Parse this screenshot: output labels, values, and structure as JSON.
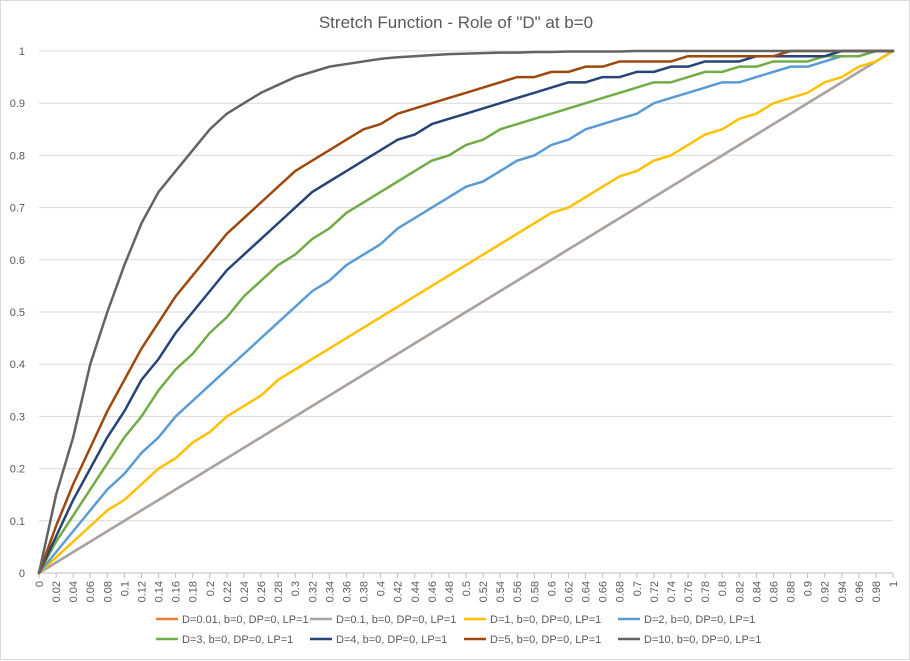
{
  "chart_data": {
    "type": "line",
    "title": "Stretch Function - Role of \"D\" at b=0",
    "xlabel": "",
    "ylabel": "",
    "xlim": [
      0,
      1
    ],
    "ylim": [
      0,
      1
    ],
    "grid": "horizontal",
    "legend_position": "bottom",
    "x_ticks": [
      "0",
      "0.02",
      "0.04",
      "0.06",
      "0.08",
      "0.1",
      "0.12",
      "0.14",
      "0.16",
      "0.18",
      "0.2",
      "0.22",
      "0.24",
      "0.26",
      "0.28",
      "0.3",
      "0.32",
      "0.34",
      "0.36",
      "0.38",
      "0.4",
      "0.42",
      "0.44",
      "0.46",
      "0.48",
      "0.5",
      "0.52",
      "0.54",
      "0.56",
      "0.58",
      "0.6",
      "0.62",
      "0.64",
      "0.66",
      "0.68",
      "0.7",
      "0.72",
      "0.74",
      "0.76",
      "0.78",
      "0.8",
      "0.82",
      "0.84",
      "0.86",
      "0.88",
      "0.9",
      "0.92",
      "0.94",
      "0.96",
      "0.98",
      "1"
    ],
    "y_ticks": [
      "0",
      "0.1",
      "0.2",
      "0.3",
      "0.4",
      "0.5",
      "0.6",
      "0.7",
      "0.8",
      "0.9",
      "1"
    ],
    "x": [
      0,
      0.02,
      0.04,
      0.06,
      0.08,
      0.1,
      0.12,
      0.14,
      0.16,
      0.18,
      0.2,
      0.22,
      0.24,
      0.26,
      0.28,
      0.3,
      0.32,
      0.34,
      0.36,
      0.38,
      0.4,
      0.42,
      0.44,
      0.46,
      0.48,
      0.5,
      0.52,
      0.54,
      0.56,
      0.58,
      0.6,
      0.62,
      0.64,
      0.66,
      0.68,
      0.7,
      0.72,
      0.74,
      0.76,
      0.78,
      0.8,
      0.82,
      0.84,
      0.86,
      0.88,
      0.9,
      0.92,
      0.94,
      0.96,
      0.98,
      1
    ],
    "series": [
      {
        "name": "D=0.01, b=0, DP=0, LP=1",
        "color": "#ED7D31",
        "values": [
          0,
          0.02,
          0.04,
          0.06,
          0.08,
          0.1,
          0.12,
          0.14,
          0.16,
          0.18,
          0.2,
          0.22,
          0.24,
          0.26,
          0.28,
          0.3,
          0.32,
          0.34,
          0.36,
          0.38,
          0.4,
          0.42,
          0.44,
          0.46,
          0.48,
          0.5,
          0.52,
          0.54,
          0.56,
          0.58,
          0.6,
          0.62,
          0.64,
          0.66,
          0.68,
          0.7,
          0.72,
          0.74,
          0.76,
          0.78,
          0.8,
          0.82,
          0.84,
          0.86,
          0.88,
          0.9,
          0.92,
          0.94,
          0.96,
          0.98,
          1
        ]
      },
      {
        "name": "D=0.1, b=0, DP=0, LP=1",
        "color": "#A5A5A5",
        "values": [
          0,
          0.02,
          0.04,
          0.06,
          0.08,
          0.1,
          0.12,
          0.14,
          0.16,
          0.18,
          0.2,
          0.22,
          0.24,
          0.26,
          0.28,
          0.3,
          0.32,
          0.34,
          0.36,
          0.38,
          0.4,
          0.42,
          0.44,
          0.46,
          0.48,
          0.5,
          0.52,
          0.54,
          0.56,
          0.58,
          0.6,
          0.62,
          0.64,
          0.66,
          0.68,
          0.7,
          0.72,
          0.74,
          0.76,
          0.78,
          0.8,
          0.82,
          0.84,
          0.86,
          0.88,
          0.9,
          0.92,
          0.94,
          0.96,
          0.98,
          1
        ]
      },
      {
        "name": "D=1, b=0, DP=0, LP=1",
        "color": "#FFC000",
        "values": [
          0,
          0.03,
          0.06,
          0.09,
          0.12,
          0.14,
          0.17,
          0.2,
          0.22,
          0.25,
          0.27,
          0.3,
          0.32,
          0.34,
          0.37,
          0.39,
          0.41,
          0.43,
          0.45,
          0.47,
          0.49,
          0.51,
          0.53,
          0.55,
          0.57,
          0.59,
          0.61,
          0.63,
          0.65,
          0.67,
          0.69,
          0.7,
          0.72,
          0.74,
          0.76,
          0.77,
          0.79,
          0.8,
          0.82,
          0.84,
          0.85,
          0.87,
          0.88,
          0.9,
          0.91,
          0.92,
          0.94,
          0.95,
          0.97,
          0.98,
          1
        ]
      },
      {
        "name": "D=2, b=0, DP=0, LP=1",
        "color": "#5B9BD5",
        "values": [
          0,
          0.04,
          0.08,
          0.12,
          0.16,
          0.19,
          0.23,
          0.26,
          0.3,
          0.33,
          0.36,
          0.39,
          0.42,
          0.45,
          0.48,
          0.51,
          0.54,
          0.56,
          0.59,
          0.61,
          0.63,
          0.66,
          0.68,
          0.7,
          0.72,
          0.74,
          0.75,
          0.77,
          0.79,
          0.8,
          0.82,
          0.83,
          0.85,
          0.86,
          0.87,
          0.88,
          0.9,
          0.91,
          0.92,
          0.93,
          0.94,
          0.94,
          0.95,
          0.96,
          0.97,
          0.97,
          0.98,
          0.99,
          0.99,
          1,
          1
        ]
      },
      {
        "name": "D=3, b=0, DP=0, LP=1",
        "color": "#70AD47",
        "values": [
          0,
          0.06,
          0.11,
          0.16,
          0.21,
          0.26,
          0.3,
          0.35,
          0.39,
          0.42,
          0.46,
          0.49,
          0.53,
          0.56,
          0.59,
          0.61,
          0.64,
          0.66,
          0.69,
          0.71,
          0.73,
          0.75,
          0.77,
          0.79,
          0.8,
          0.82,
          0.83,
          0.85,
          0.86,
          0.87,
          0.88,
          0.89,
          0.9,
          0.91,
          0.92,
          0.93,
          0.94,
          0.94,
          0.95,
          0.96,
          0.96,
          0.97,
          0.97,
          0.98,
          0.98,
          0.98,
          0.99,
          0.99,
          0.99,
          1,
          1
        ]
      },
      {
        "name": "D=4, b=0, DP=0, LP=1",
        "color": "#264478",
        "values": [
          0,
          0.07,
          0.14,
          0.2,
          0.26,
          0.31,
          0.37,
          0.41,
          0.46,
          0.5,
          0.54,
          0.58,
          0.61,
          0.64,
          0.67,
          0.7,
          0.73,
          0.75,
          0.77,
          0.79,
          0.81,
          0.83,
          0.84,
          0.86,
          0.87,
          0.88,
          0.89,
          0.9,
          0.91,
          0.92,
          0.93,
          0.94,
          0.94,
          0.95,
          0.95,
          0.96,
          0.96,
          0.97,
          0.97,
          0.98,
          0.98,
          0.98,
          0.99,
          0.99,
          0.99,
          0.99,
          0.99,
          1,
          1,
          1,
          1
        ]
      },
      {
        "name": "D=5, b=0, DP=0, LP=1",
        "color": "#9E480E",
        "values": [
          0,
          0.09,
          0.17,
          0.24,
          0.31,
          0.37,
          0.43,
          0.48,
          0.53,
          0.57,
          0.61,
          0.65,
          0.68,
          0.71,
          0.74,
          0.77,
          0.79,
          0.81,
          0.83,
          0.85,
          0.86,
          0.88,
          0.89,
          0.9,
          0.91,
          0.92,
          0.93,
          0.94,
          0.95,
          0.95,
          0.96,
          0.96,
          0.97,
          0.97,
          0.98,
          0.98,
          0.98,
          0.98,
          0.99,
          0.99,
          0.99,
          0.99,
          0.99,
          0.99,
          1,
          1,
          1,
          1,
          1,
          1,
          1
        ]
      },
      {
        "name": "D=10, b=0, DP=0, LP=1",
        "color": "#636363",
        "values": [
          0,
          0.15,
          0.26,
          0.4,
          0.5,
          0.59,
          0.67,
          0.73,
          0.77,
          0.81,
          0.85,
          0.88,
          0.9,
          0.92,
          0.935,
          0.95,
          0.96,
          0.97,
          0.975,
          0.98,
          0.985,
          0.988,
          0.99,
          0.992,
          0.994,
          0.995,
          0.996,
          0.997,
          0.997,
          0.998,
          0.998,
          0.999,
          0.999,
          0.999,
          0.999,
          1,
          1,
          1,
          1,
          1,
          1,
          1,
          1,
          1,
          1,
          1,
          1,
          1,
          1,
          1,
          1
        ]
      }
    ]
  }
}
